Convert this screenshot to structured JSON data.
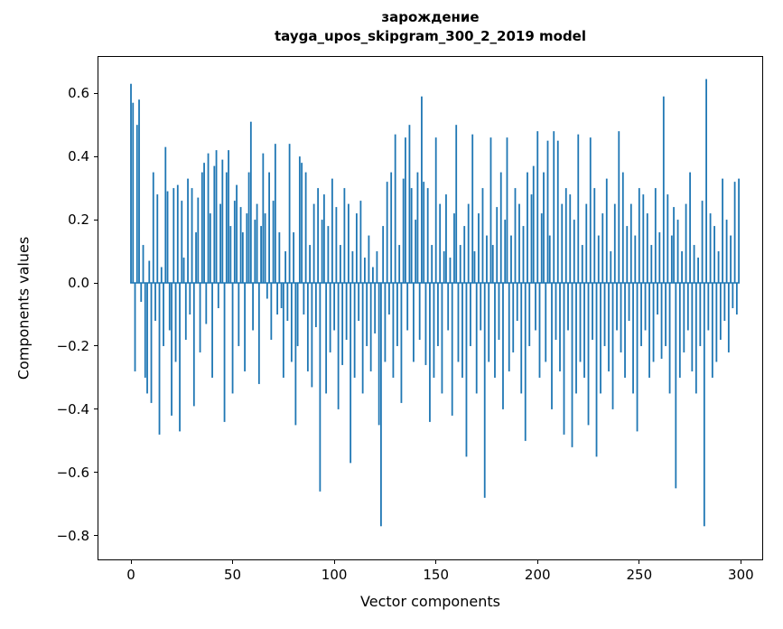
{
  "figure": {
    "title_line1": "зарождение",
    "title_line2": "tayga_upos_skipgram_300_2_2019 model",
    "xlabel": "Vector components",
    "ylabel": "Components values",
    "bar_color": "#1f77b4",
    "background": "#ffffff"
  },
  "chart_data": {
    "type": "bar",
    "title": "зарождение — tayga_upos_skipgram_300_2_2019 model",
    "xlabel": "Vector components",
    "ylabel": "Components values",
    "legend": "none",
    "grid": false,
    "bar_color": "#1f77b4",
    "bar_width": 0.8,
    "n_components": 300,
    "xlim": [
      -16,
      310.5
    ],
    "ylim": [
      -0.875,
      0.715
    ],
    "xticks": [
      0,
      50,
      100,
      150,
      200,
      250,
      300
    ],
    "yticks": [
      -0.8,
      -0.6,
      -0.4,
      -0.2,
      0.0,
      0.2,
      0.4,
      0.6
    ],
    "values": [
      0.63,
      0.57,
      -0.28,
      0.5,
      0.58,
      -0.06,
      0.12,
      -0.3,
      -0.35,
      0.07,
      -0.38,
      0.35,
      -0.12,
      0.28,
      -0.48,
      0.05,
      -0.2,
      0.43,
      0.29,
      -0.15,
      -0.42,
      0.3,
      -0.25,
      0.31,
      -0.47,
      0.26,
      0.08,
      -0.18,
      0.33,
      -0.1,
      0.3,
      -0.39,
      0.16,
      0.27,
      -0.22,
      0.35,
      0.38,
      -0.13,
      0.41,
      0.22,
      -0.3,
      0.37,
      0.42,
      -0.08,
      0.25,
      0.39,
      -0.44,
      0.35,
      0.42,
      0.18,
      -0.35,
      0.26,
      0.31,
      -0.2,
      0.24,
      0.16,
      -0.28,
      0.22,
      0.35,
      0.51,
      -0.15,
      0.2,
      0.25,
      -0.32,
      0.18,
      0.41,
      0.22,
      -0.05,
      0.35,
      -0.18,
      0.26,
      0.44,
      -0.1,
      0.16,
      -0.08,
      -0.3,
      0.1,
      -0.12,
      0.44,
      -0.25,
      0.16,
      -0.45,
      -0.2,
      0.4,
      0.38,
      -0.1,
      0.35,
      -0.28,
      0.12,
      -0.33,
      0.25,
      -0.14,
      0.3,
      -0.66,
      0.2,
      0.28,
      -0.35,
      0.18,
      -0.22,
      0.33,
      -0.15,
      0.24,
      -0.4,
      0.12,
      -0.26,
      0.3,
      -0.18,
      0.25,
      -0.57,
      0.1,
      -0.3,
      0.22,
      -0.12,
      0.26,
      -0.35,
      0.08,
      -0.2,
      0.15,
      -0.28,
      0.05,
      -0.16,
      0.1,
      -0.45,
      -0.77,
      0.18,
      -0.25,
      0.32,
      -0.1,
      0.35,
      -0.3,
      0.47,
      -0.2,
      0.12,
      -0.38,
      0.33,
      0.46,
      -0.15,
      0.5,
      0.3,
      -0.25,
      0.2,
      0.35,
      -0.18,
      0.59,
      0.32,
      -0.26,
      0.3,
      -0.44,
      0.12,
      -0.3,
      0.46,
      -0.2,
      0.25,
      -0.35,
      0.1,
      0.28,
      -0.15,
      0.08,
      -0.42,
      0.22,
      0.5,
      -0.25,
      0.12,
      -0.3,
      0.18,
      -0.55,
      0.25,
      -0.2,
      0.47,
      0.1,
      -0.35,
      0.22,
      -0.15,
      0.3,
      -0.68,
      0.15,
      -0.25,
      0.46,
      0.12,
      -0.3,
      0.24,
      -0.18,
      0.35,
      -0.4,
      0.2,
      0.46,
      -0.28,
      0.15,
      -0.22,
      0.3,
      -0.12,
      0.25,
      -0.35,
      0.18,
      -0.5,
      0.35,
      -0.2,
      0.28,
      0.37,
      -0.15,
      0.48,
      -0.3,
      0.22,
      0.35,
      -0.25,
      0.45,
      0.15,
      -0.4,
      0.48,
      -0.18,
      0.45,
      -0.28,
      0.25,
      -0.48,
      0.3,
      -0.15,
      0.28,
      -0.52,
      0.2,
      -0.35,
      0.47,
      -0.25,
      0.12,
      -0.3,
      0.25,
      -0.45,
      0.46,
      -0.18,
      0.3,
      -0.55,
      0.15,
      -0.35,
      0.22,
      -0.2,
      0.33,
      -0.28,
      0.1,
      -0.4,
      0.25,
      -0.15,
      0.48,
      -0.22,
      0.35,
      -0.3,
      0.18,
      -0.12,
      0.25,
      -0.35,
      0.15,
      -0.47,
      0.3,
      -0.2,
      0.28,
      -0.15,
      0.22,
      -0.3,
      0.12,
      -0.25,
      0.3,
      -0.1,
      0.16,
      -0.24,
      0.59,
      -0.2,
      0.28,
      -0.35,
      0.15,
      0.24,
      -0.65,
      0.2,
      -0.3,
      0.1,
      -0.22,
      0.25,
      -0.15,
      0.35,
      -0.28,
      0.12,
      -0.35,
      0.08,
      -0.2,
      0.26,
      -0.77,
      0.645,
      -0.15,
      0.22,
      -0.3,
      0.18,
      -0.25,
      0.1,
      -0.18,
      0.33,
      -0.12,
      0.2,
      -0.22,
      0.15,
      -0.08,
      0.32,
      -0.1,
      0.33
    ]
  }
}
